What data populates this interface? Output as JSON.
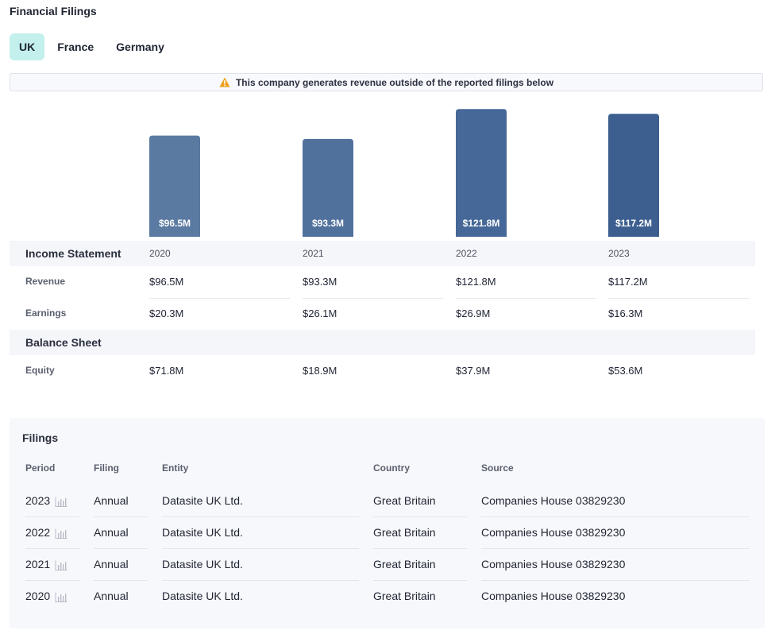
{
  "page_title": "Financial Filings",
  "tabs": [
    {
      "label": "UK",
      "active": true
    },
    {
      "label": "France",
      "active": false
    },
    {
      "label": "Germany",
      "active": false
    }
  ],
  "banner": {
    "icon": "warning-icon",
    "text": "This company generates revenue outside of the reported filings below",
    "icon_color": "#f0a020"
  },
  "chart_data": {
    "type": "bar",
    "categories": [
      "2020",
      "2021",
      "2022",
      "2023"
    ],
    "values": [
      96.5,
      93.3,
      121.8,
      117.2
    ],
    "data_labels": [
      "$96.5M",
      "$93.3M",
      "$121.8M",
      "$117.2M"
    ],
    "ylim": [
      0,
      125
    ],
    "colors": [
      "#5b7aa2",
      "#51719d",
      "#466898",
      "#3d5f90"
    ],
    "grid": false
  },
  "income_statement": {
    "title": "Income Statement",
    "years": [
      "2020",
      "2021",
      "2022",
      "2023"
    ],
    "rows": [
      {
        "label": "Revenue",
        "values": [
          "$96.5M",
          "$93.3M",
          "$121.8M",
          "$117.2M"
        ]
      },
      {
        "label": "Earnings",
        "values": [
          "$20.3M",
          "$26.1M",
          "$26.9M",
          "$16.3M"
        ]
      }
    ]
  },
  "balance_sheet": {
    "title": "Balance Sheet",
    "rows": [
      {
        "label": "Equity",
        "values": [
          "$71.8M",
          "$18.9M",
          "$37.9M",
          "$53.6M"
        ]
      }
    ]
  },
  "filings": {
    "title": "Filings",
    "headers": [
      "Period",
      "Filing",
      "Entity",
      "Country",
      "Source"
    ],
    "rows": [
      {
        "period": "2023",
        "filing": "Annual",
        "entity": "Datasite UK Ltd.",
        "country": "Great Britain",
        "source": "Companies House 03829230"
      },
      {
        "period": "2022",
        "filing": "Annual",
        "entity": "Datasite UK Ltd.",
        "country": "Great Britain",
        "source": "Companies House 03829230"
      },
      {
        "period": "2021",
        "filing": "Annual",
        "entity": "Datasite UK Ltd.",
        "country": "Great Britain",
        "source": "Companies House 03829230"
      },
      {
        "period": "2020",
        "filing": "Annual",
        "entity": "Datasite UK Ltd.",
        "country": "Great Britain",
        "source": "Companies House 03829230"
      }
    ],
    "row_icon": "bar-chart-icon"
  }
}
